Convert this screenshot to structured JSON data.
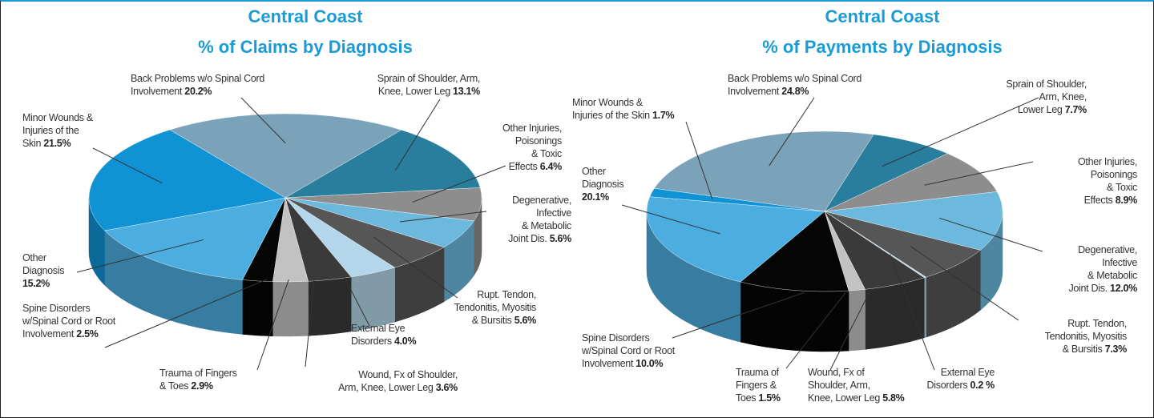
{
  "chart_data": [
    {
      "type": "pie",
      "title": "Central Coast",
      "subtitle": "% of Claims by Diagnosis",
      "categories": [
        "Back Problems w/o Spinal Cord\nInvolvement",
        "Sprain of Shoulder, Arm,\nKnee, Lower Leg",
        "Other Injuries,\nPoisonings\n& Toxic\nEffects",
        "Degenerative,\nInfective\n& Metabolic\nJoint Dis.",
        "Rupt. Tendon,\nTendonitis, Myositis\n& Bursitis",
        "External Eye\nDisorders",
        "Wound, Fx of Shoulder,\nArm, Knee, Lower Leg",
        "Trauma of Fingers\n& Toes",
        "Spine Disorders\nw/Spinal Cord or Root\nInvolvement",
        "Other\nDiagnosis",
        "Minor Wounds &\nInjuries of the\nSkin"
      ],
      "values": [
        20.2,
        13.1,
        6.4,
        5.6,
        5.6,
        4.0,
        3.6,
        2.9,
        2.5,
        15.2,
        21.5
      ],
      "value_labels": [
        "20.2%",
        "13.1%",
        "6.4%",
        "5.6%",
        "5.6%",
        "4.0%",
        "3.6%",
        "2.9%",
        "2.5%",
        "15.2%",
        "21.5%"
      ],
      "colors": [
        "#7aa3b9",
        "#2a7e9d",
        "#8d8d8d",
        "#6cb9dd",
        "#565656",
        "#b3d6ea",
        "#3a3a3a",
        "#c2c2c2",
        "#050505",
        "#4caee0",
        "#0f93d5"
      ]
    },
    {
      "type": "pie",
      "title": "Central Coast",
      "subtitle": "% of Payments by Diagnosis",
      "categories": [
        "Back Problems w/o Spinal Cord\nInvolvement",
        "Sprain of Shoulder,\nArm, Knee,\nLower Leg",
        "Other Injuries,\nPoisonings\n& Toxic\nEffects",
        "Degenerative,\nInfective\n& Metabolic\nJoint Dis.",
        "Rupt. Tendon,\nTendonitis, Myositis\n& Bursitis",
        "External Eye\nDisorders",
        "Wound, Fx of\nShoulder, Arm,\nKnee, Lower Leg",
        "Trauma of\nFingers &\nToes",
        "Spine Disorders\nw/Spinal Cord or Root\nInvolvement",
        "Other\nDiagnosis",
        "Minor Wounds &\nInjuries of the Skin"
      ],
      "values": [
        24.8,
        7.7,
        8.9,
        12.0,
        7.3,
        0.2,
        5.8,
        1.5,
        10.0,
        20.1,
        1.7
      ],
      "value_labels": [
        "24.8%",
        "7.7%",
        "8.9%",
        "12.0%",
        "7.3%",
        "0.2 %",
        "5.8%",
        "1.5%",
        "10.0%",
        "20.1%",
        "1.7%"
      ],
      "colors": [
        "#7aa3b9",
        "#2a7e9d",
        "#8d8d8d",
        "#6cb9dd",
        "#565656",
        "#b3d6ea",
        "#3a3a3a",
        "#c2c2c2",
        "#050505",
        "#4caee0",
        "#0f93d5"
      ]
    }
  ]
}
